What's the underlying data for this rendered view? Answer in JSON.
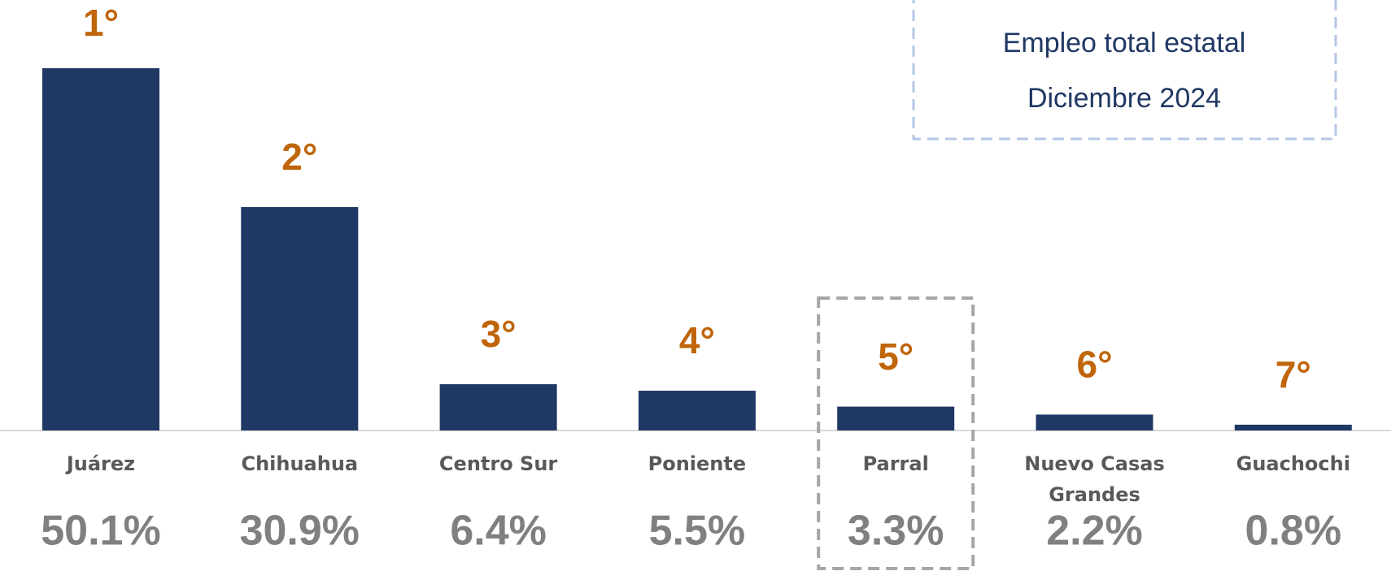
{
  "chart_data": {
    "type": "bar",
    "annotations": [
      "Empleo total estatal",
      "Diciembre 2024"
    ],
    "categories": [
      "Juárez",
      "Chihuahua",
      "Centro Sur",
      "Poniente",
      "Parral",
      "Nuevo Casas Grandes",
      "Guachochi"
    ],
    "values": [
      50.1,
      30.9,
      6.4,
      5.5,
      3.3,
      2.2,
      0.8
    ],
    "value_labels": [
      "50.1%",
      "30.9%",
      "6.4%",
      "5.5%",
      "3.3%",
      "2.2%",
      "0.8%"
    ],
    "rank_labels": [
      "1°",
      "2°",
      "3°",
      "4°",
      "5°",
      "6°",
      "7°"
    ],
    "color": "#203864",
    "rank_color": "#c0650a",
    "value_label_color": "#808080",
    "highlight": "Parral"
  }
}
